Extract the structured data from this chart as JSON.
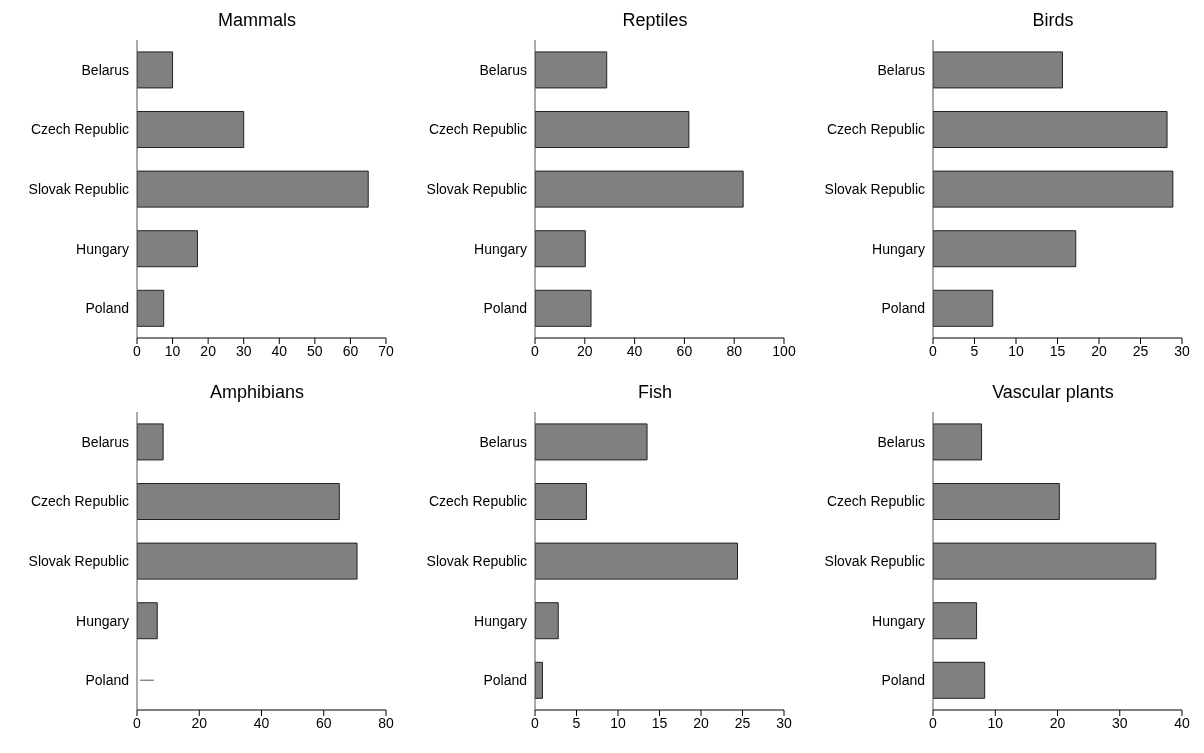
{
  "chart_data": [
    {
      "type": "bar",
      "orientation": "horizontal",
      "title": "Mammals",
      "categories": [
        "Belarus",
        "Czech Republic",
        "Slovak Republic",
        "Hungary",
        "Poland"
      ],
      "values": [
        10,
        30,
        65,
        17,
        7.5
      ],
      "color": "#808080",
      "xlim": [
        0,
        70
      ],
      "xticks": [
        0,
        10,
        20,
        30,
        40,
        50,
        60,
        70
      ],
      "grid": false
    },
    {
      "type": "bar",
      "orientation": "horizontal",
      "title": "Reptiles",
      "categories": [
        "Belarus",
        "Czech Republic",
        "Slovak Republic",
        "Hungary",
        "Poland"
      ],
      "values": [
        28.8,
        61.8,
        83.6,
        20.2,
        22.5
      ],
      "color": "#808080",
      "xlim": [
        0,
        100
      ],
      "xticks": [
        0,
        20,
        40,
        60,
        80,
        100
      ],
      "grid": false
    },
    {
      "type": "bar",
      "orientation": "horizontal",
      "title": "Birds",
      "categories": [
        "Belarus",
        "Czech Republic",
        "Slovak Republic",
        "Hungary",
        "Poland"
      ],
      "values": [
        15.6,
        28.2,
        28.9,
        17.2,
        7.2
      ],
      "color": "#808080",
      "xlim": [
        0,
        30
      ],
      "xticks": [
        0,
        5,
        10,
        15,
        20,
        25,
        30
      ],
      "grid": false
    },
    {
      "type": "bar",
      "orientation": "horizontal",
      "title": "Amphibians",
      "categories": [
        "Belarus",
        "Czech Republic",
        "Slovak Republic",
        "Hungary",
        "Poland"
      ],
      "values": [
        8.4,
        65,
        70.7,
        6.5,
        null
      ],
      "color": "#808080",
      "xlim": [
        0,
        80
      ],
      "xticks": [
        0,
        20,
        40,
        60,
        80
      ],
      "grid": false
    },
    {
      "type": "bar",
      "orientation": "horizontal",
      "title": "Fish",
      "categories": [
        "Belarus",
        "Czech Republic",
        "Slovak Republic",
        "Hungary",
        "Poland"
      ],
      "values": [
        13.5,
        6.2,
        24.4,
        2.8,
        0.9
      ],
      "color": "#808080",
      "xlim": [
        0,
        30
      ],
      "xticks": [
        0,
        5,
        10,
        15,
        20,
        25,
        30
      ],
      "grid": false
    },
    {
      "type": "bar",
      "orientation": "horizontal",
      "title": "Vascular plants",
      "categories": [
        "Belarus",
        "Czech Republic",
        "Slovak Republic",
        "Hungary",
        "Poland"
      ],
      "values": [
        7.8,
        20.3,
        35.8,
        7.0,
        8.3
      ],
      "color": "#808080",
      "xlim": [
        0,
        40
      ],
      "xticks": [
        0,
        10,
        20,
        30,
        40
      ],
      "grid": false
    }
  ]
}
